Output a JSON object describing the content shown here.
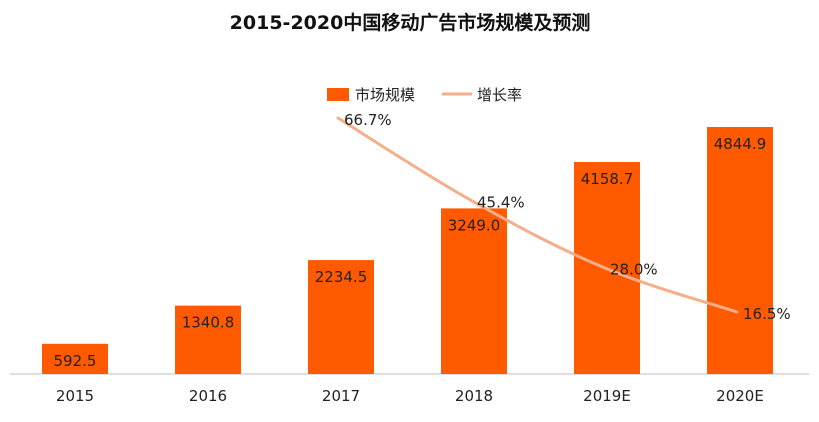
{
  "chart_data": {
    "type": "bar",
    "title": "2015-2020中国移动广告市场规模及预测",
    "categories": [
      "2015",
      "2016",
      "2017",
      "2018",
      "2019E",
      "2020E"
    ],
    "series": [
      {
        "name": "市场规模",
        "type": "bar",
        "values": [
          592.5,
          1340.8,
          2234.5,
          3249.0,
          4158.7,
          4844.9
        ],
        "labels": [
          "592.5",
          "1340.8",
          "2234.5",
          "3249.0",
          "4158.7",
          "4844.9"
        ],
        "color": "#FF5A00"
      },
      {
        "name": "增长率",
        "type": "line",
        "values": [
          null,
          null,
          66.7,
          45.4,
          28.0,
          16.5
        ],
        "labels": [
          "",
          "",
          "66.7%",
          "45.4%",
          "28.0%",
          "16.5%"
        ],
        "color": "#F4AE8A"
      }
    ],
    "legend": "top-center",
    "grid": false
  }
}
